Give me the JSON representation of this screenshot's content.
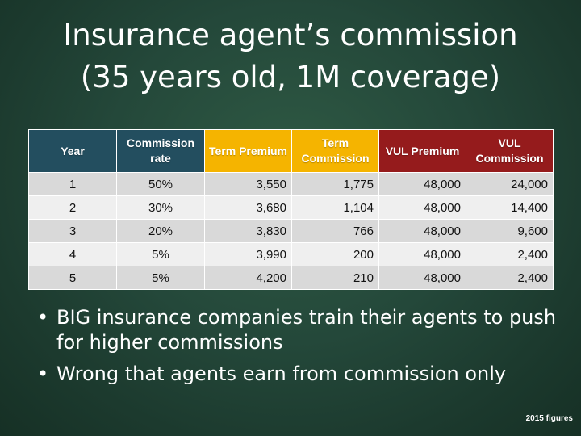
{
  "title": {
    "line1": "Insurance agent’s commission",
    "line2": "(35 years old, 1M coverage)"
  },
  "table": {
    "header_colors": {
      "dark_teal": "#234E5F",
      "gold": "#F5B400",
      "maroon": "#951B1C"
    },
    "headers": [
      "Year",
      "Commission rate",
      "Term Premium",
      "Term Commission",
      "VUL Premium",
      "VUL Commission"
    ],
    "rows": [
      [
        "1",
        "50%",
        "3,550",
        "1,775",
        "48,000",
        "24,000"
      ],
      [
        "2",
        "30%",
        "3,680",
        "1,104",
        "48,000",
        "14,400"
      ],
      [
        "3",
        "20%",
        "3,830",
        "766",
        "48,000",
        "9,600"
      ],
      [
        "4",
        "5%",
        "3,990",
        "200",
        "48,000",
        "2,400"
      ],
      [
        "5",
        "5%",
        "4,200",
        "210",
        "48,000",
        "2,400"
      ]
    ]
  },
  "bullets": [
    "BIG insurance companies train their agents to push for higher commissions",
    "Wrong that agents earn from commission only"
  ],
  "bullet_glyph": "•",
  "footnote": "2015 figures"
}
